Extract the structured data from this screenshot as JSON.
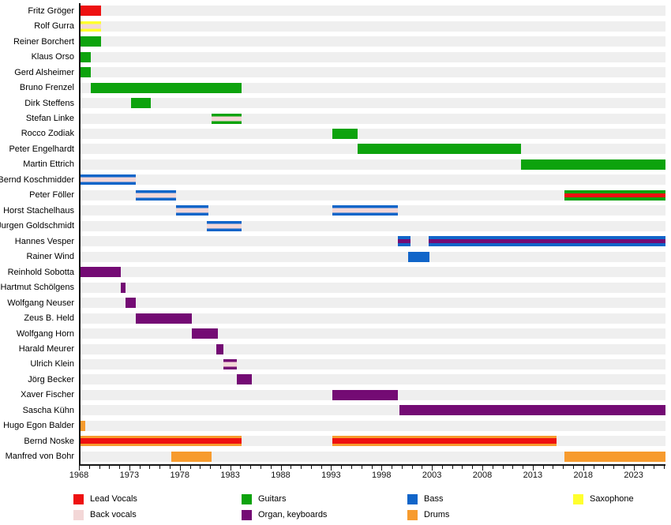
{
  "chart_data": {
    "type": "gantt",
    "title": "",
    "xlabel": "",
    "ylabel": "",
    "grid": false,
    "legend_position": "bottom",
    "x_axis": {
      "domain": [
        1968,
        2026
      ],
      "minor_tick_interval": 1,
      "tick_labels": [
        "1968",
        "1973",
        "1978",
        "1983",
        "1988",
        "1993",
        "1998",
        "2003",
        "2008",
        "2013",
        "2018",
        "2023"
      ]
    },
    "colors": {
      "lead_vocals": "#ee1111",
      "back_vocals": "#f3d7d7",
      "guitars": "#0da30d",
      "organ_keyboards": "#740b74",
      "bass": "#1165c9",
      "drums": "#f79b2e",
      "saxophone": "#ffff2e"
    },
    "legend": [
      {
        "label": "Lead Vocals",
        "role": "lead_vocals",
        "col": 0,
        "row": 0
      },
      {
        "label": "Back vocals",
        "role": "back_vocals",
        "col": 0,
        "row": 1
      },
      {
        "label": "Guitars",
        "role": "guitars",
        "col": 1,
        "row": 0
      },
      {
        "label": "Organ, keyboards",
        "role": "organ_keyboards",
        "col": 1,
        "row": 1
      },
      {
        "label": "Bass",
        "role": "bass",
        "col": 2,
        "row": 0
      },
      {
        "label": "Drums",
        "role": "drums",
        "col": 2,
        "row": 1
      },
      {
        "label": "Saxophone",
        "role": "saxophone",
        "col": 3,
        "row": 0
      }
    ],
    "members": [
      {
        "name": "Fritz Gröger",
        "bars": [
          {
            "start": 1968,
            "end": 1970,
            "role": "lead_vocals"
          }
        ]
      },
      {
        "name": "Rolf Gurra",
        "bars": [
          {
            "start": 1968,
            "end": 1970,
            "role": "saxophone",
            "stripe": "back_vocals"
          }
        ]
      },
      {
        "name": "Reiner Borchert",
        "bars": [
          {
            "start": 1968,
            "end": 1970,
            "role": "guitars"
          }
        ]
      },
      {
        "name": "Klaus Orso",
        "bars": [
          {
            "start": 1968,
            "end": 1969,
            "role": "guitars"
          }
        ]
      },
      {
        "name": "Gerd Alsheimer",
        "bars": [
          {
            "start": 1968,
            "end": 1969,
            "role": "guitars"
          }
        ]
      },
      {
        "name": "Bruno Frenzel",
        "bars": [
          {
            "start": 1969,
            "end": 1984,
            "role": "guitars"
          }
        ]
      },
      {
        "name": "Dirk Steffens",
        "bars": [
          {
            "start": 1973,
            "end": 1975,
            "role": "guitars"
          }
        ]
      },
      {
        "name": "Stefan Linke",
        "bars": [
          {
            "start": 1981,
            "end": 1984,
            "role": "guitars",
            "stripe": "back_vocals"
          }
        ]
      },
      {
        "name": "Rocco Zodiak",
        "bars": [
          {
            "start": 1993,
            "end": 1995.5,
            "role": "guitars"
          }
        ]
      },
      {
        "name": "Peter Engelhardt",
        "bars": [
          {
            "start": 1995.5,
            "end": 2011.7,
            "role": "guitars"
          }
        ]
      },
      {
        "name": "Martin Ettrich",
        "bars": [
          {
            "start": 2011.7,
            "end": 2026,
            "role": "guitars"
          }
        ]
      },
      {
        "name": "Bernd Koschmidder",
        "bars": [
          {
            "start": 1968,
            "end": 1973.5,
            "role": "bass",
            "stripe": "back_vocals"
          }
        ]
      },
      {
        "name": "Peter Föller",
        "bars": [
          {
            "start": 1973.5,
            "end": 1977.5,
            "role": "bass",
            "stripe": "back_vocals"
          },
          {
            "start": 2016,
            "end": 2026,
            "role": "guitars",
            "stripe": "lead_vocals",
            "stripe_frac": 0.4
          }
        ]
      },
      {
        "name": "Horst Stachelhaus",
        "bars": [
          {
            "start": 1977.5,
            "end": 1980.7,
            "role": "bass",
            "stripe": "back_vocals"
          },
          {
            "start": 1993,
            "end": 1999.5,
            "role": "bass",
            "stripe": "back_vocals"
          }
        ]
      },
      {
        "name": "Jurgen Goldschmidt",
        "bars": [
          {
            "start": 1980.5,
            "end": 1984,
            "role": "bass",
            "stripe": "back_vocals"
          }
        ]
      },
      {
        "name": "Hannes Vesper",
        "bars": [
          {
            "start": 1999.5,
            "end": 2000.7,
            "role": "bass",
            "stripe": "organ_keyboards",
            "stripe_frac": 0.38
          },
          {
            "start": 2002.5,
            "end": 2026,
            "role": "bass",
            "stripe": "organ_keyboards",
            "stripe_frac": 0.38
          }
        ]
      },
      {
        "name": "Rainer Wind",
        "bars": [
          {
            "start": 2000.5,
            "end": 2002.6,
            "role": "bass"
          }
        ]
      },
      {
        "name": "Reinhold Sobotta",
        "bars": [
          {
            "start": 1968,
            "end": 1972,
            "role": "organ_keyboards"
          }
        ]
      },
      {
        "name": "Hartmut Schölgens",
        "bars": [
          {
            "start": 1972,
            "end": 1972.5,
            "role": "organ_keyboards"
          }
        ]
      },
      {
        "name": "Wolfgang Neuser",
        "bars": [
          {
            "start": 1972.5,
            "end": 1973.5,
            "role": "organ_keyboards"
          }
        ]
      },
      {
        "name": "Zeus B. Held",
        "bars": [
          {
            "start": 1973.5,
            "end": 1979,
            "role": "organ_keyboards"
          }
        ]
      },
      {
        "name": "Wolfgang Horn",
        "bars": [
          {
            "start": 1979,
            "end": 1981.6,
            "role": "organ_keyboards"
          }
        ]
      },
      {
        "name": "Harald Meurer",
        "bars": [
          {
            "start": 1981.5,
            "end": 1982.2,
            "role": "organ_keyboards"
          }
        ]
      },
      {
        "name": "Ulrich Klein",
        "bars": [
          {
            "start": 1982.2,
            "end": 1983.5,
            "role": "organ_keyboards",
            "stripe": "back_vocals"
          }
        ]
      },
      {
        "name": "Jörg Becker",
        "bars": [
          {
            "start": 1983.5,
            "end": 1985,
            "role": "organ_keyboards"
          }
        ]
      },
      {
        "name": "Xaver Fischer",
        "bars": [
          {
            "start": 1993,
            "end": 1999.5,
            "role": "organ_keyboards"
          }
        ]
      },
      {
        "name": "Sascha Kühn",
        "bars": [
          {
            "start": 1999.6,
            "end": 2026,
            "role": "organ_keyboards"
          }
        ]
      },
      {
        "name": "Hugo Egon Balder",
        "bars": [
          {
            "start": 1968,
            "end": 1968.5,
            "role": "drums"
          }
        ]
      },
      {
        "name": "Bernd Noske",
        "bars": [
          {
            "start": 1968,
            "end": 1984,
            "role": "drums",
            "stripe": "lead_vocals",
            "stripe_frac": 0.56
          },
          {
            "start": 1993,
            "end": 2015.2,
            "role": "drums",
            "stripe": "lead_vocals",
            "stripe_frac": 0.56
          }
        ]
      },
      {
        "name": "Manfred von Bohr",
        "bars": [
          {
            "start": 1977,
            "end": 1981,
            "role": "drums"
          },
          {
            "start": 2016,
            "end": 2026,
            "role": "drums"
          }
        ]
      }
    ]
  }
}
